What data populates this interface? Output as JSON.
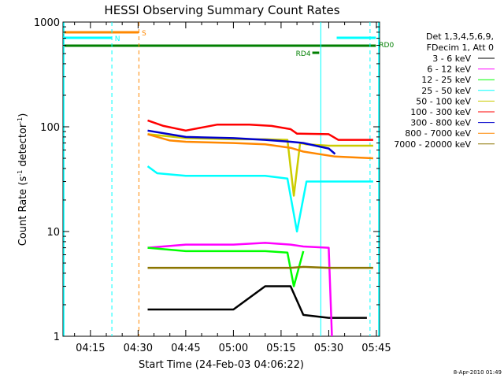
{
  "chart_data": {
    "type": "line",
    "title": "HESSI Observing Summary Count Rates",
    "xlabel": "Start Time (24-Feb-03 04:06:22)",
    "ylabel_main": "Count Rate (s",
    "ylabel_sup1": "-1",
    "ylabel_mid": " detector",
    "ylabel_sup2": "-1",
    "ylabel_end": ")",
    "ylabel": "Count Rate (s-1 detector-1)",
    "yscale": "log",
    "ylim": [
      1,
      1000
    ],
    "xlim": [
      "04:06:22",
      "05:46:00"
    ],
    "xtick_labels": [
      "04:15",
      "04:30",
      "04:45",
      "05:00",
      "05:15",
      "05:30",
      "05:45"
    ],
    "ytick_labels": [
      "1",
      "10",
      "100",
      "1000"
    ],
    "legend_lines": [
      "Det 1,3,4,5,6,9,",
      "FDecim 1, Att 0"
    ],
    "legend_placement": "right",
    "series": [
      {
        "name": "3 - 6 keV",
        "color": "#000000",
        "x": [
          "04:33:00",
          "04:45:00",
          "05:00:00",
          "05:10:00",
          "05:18:00",
          "05:22:00",
          "05:30:00",
          "05:42:00"
        ],
        "y": [
          1.8,
          1.8,
          1.8,
          3,
          3,
          1.6,
          1.5,
          1.5
        ]
      },
      {
        "name": "6 - 12 keV",
        "color": "#ff00ff",
        "x": [
          "04:33:00",
          "04:45:00",
          "05:00:00",
          "05:10:00",
          "05:18:00",
          "05:22:00",
          "05:30:00",
          "05:31:00"
        ],
        "y": [
          7,
          7.5,
          7.5,
          7.8,
          7.5,
          7.2,
          7,
          1
        ]
      },
      {
        "name": "12 - 25 keV",
        "color": "#00ff00",
        "x": [
          "04:33:00",
          "04:45:00",
          "05:00:00",
          "05:10:00",
          "05:17:00",
          "05:19:00",
          "05:22:00"
        ],
        "y": [
          7,
          6.5,
          6.5,
          6.5,
          6.3,
          3,
          6.5
        ]
      },
      {
        "name": "25 - 50 keV",
        "color": "#00ffff",
        "x": [
          "04:33:00",
          "04:36:00",
          "04:45:00",
          "05:00:00",
          "05:10:00",
          "05:17:00",
          "05:20:00",
          "05:23:00",
          "05:30:00",
          "05:44:00"
        ],
        "y": [
          42,
          36,
          34,
          34,
          34,
          32,
          10,
          30,
          30,
          30
        ]
      },
      {
        "name": "50 - 100 keV",
        "color": "#cccc00",
        "x": [
          "04:33:00",
          "04:45:00",
          "05:00:00",
          "05:10:00",
          "05:17:00",
          "05:19:00",
          "05:21:00",
          "05:23:00",
          "05:30:00",
          "05:44:00"
        ],
        "y": [
          85,
          78,
          76,
          76,
          75,
          22,
          70,
          68,
          66,
          66
        ]
      },
      {
        "name": "100 - 300 keV",
        "color": "#ff0000",
        "x": [
          "04:33:00",
          "04:38:00",
          "04:45:00",
          "04:55:00",
          "05:05:00",
          "05:12:00",
          "05:18:00",
          "05:20:00",
          "05:30:00",
          "05:33:00",
          "05:44:00"
        ],
        "y": [
          115,
          102,
          92,
          105,
          105,
          102,
          95,
          86,
          85,
          75,
          75
        ]
      },
      {
        "name": "300 - 800 keV",
        "color": "#0000cc",
        "x": [
          "04:33:00",
          "04:45:00",
          "05:00:00",
          "05:10:00",
          "05:18:00",
          "05:22:00",
          "05:30:00",
          "05:32:00"
        ],
        "y": [
          92,
          80,
          78,
          75,
          72,
          70,
          62,
          55
        ]
      },
      {
        "name": "800 - 7000 keV",
        "color": "#ff8800",
        "x": [
          "04:33:00",
          "04:40:00",
          "04:45:00",
          "05:00:00",
          "05:10:00",
          "05:18:00",
          "05:22:00",
          "05:32:00",
          "05:44:00"
        ],
        "y": [
          85,
          74,
          72,
          70,
          68,
          63,
          58,
          52,
          50
        ]
      },
      {
        "name": "7000 - 20000 keV",
        "color": "#8b7500",
        "x": [
          "04:33:00",
          "04:45:00",
          "05:00:00",
          "05:10:00",
          "05:18:00",
          "05:22:00",
          "05:30:00",
          "05:44:00"
        ],
        "y": [
          4.5,
          4.5,
          4.5,
          4.5,
          4.5,
          4.6,
          4.5,
          4.5
        ]
      }
    ],
    "flag_bars": [
      {
        "label": "S",
        "color": "#ff8800",
        "start": "04:06:22",
        "end": "04:30:10"
      },
      {
        "label": "N",
        "color": "#00ffff",
        "start": "04:06:22",
        "end": "04:21:40"
      },
      {
        "label": "",
        "color": "#00ffff",
        "start": "05:32:30",
        "end": "05:44:50"
      },
      {
        "label": "RD0",
        "color": "#007f00",
        "start": "04:06:22",
        "end": "05:44:50"
      },
      {
        "label": "RD4",
        "color": "#007f00",
        "start": "05:24:50",
        "end": "05:27:00"
      }
    ],
    "vertical_markers": [
      {
        "color": "#00ffff",
        "style": "dashed",
        "time": "04:21:45"
      },
      {
        "color": "#ff8800",
        "style": "dashed",
        "time": "04:30:15"
      },
      {
        "color": "#00ffff",
        "style": "solid",
        "time": "05:27:30"
      },
      {
        "color": "#00ffff",
        "style": "dashed",
        "time": "05:43:00"
      }
    ],
    "x_range_markers": [
      {
        "color": "#00ffff",
        "style": "solid",
        "time": "04:06:22"
      },
      {
        "color": "#00ffff",
        "style": "solid",
        "time": "05:46:00"
      }
    ]
  },
  "footer": {
    "timestamp": "8-Apr-2010 01:49"
  }
}
